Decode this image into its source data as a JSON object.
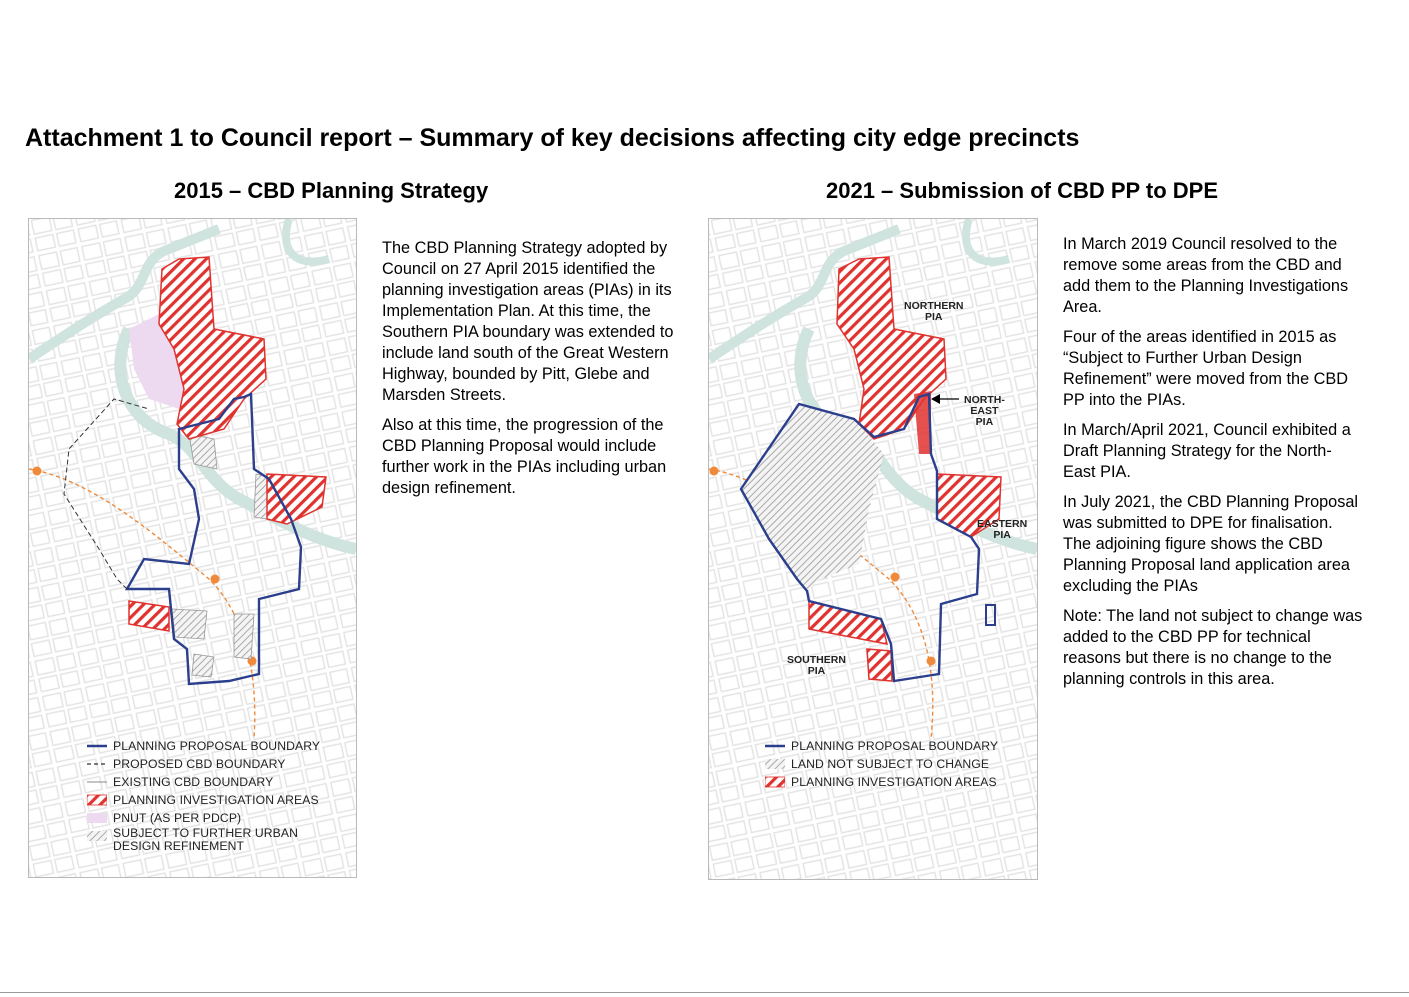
{
  "document": {
    "title": "Attachment 1 to Council report – Summary of key decisions affecting city edge precincts"
  },
  "left_section": {
    "heading": "2015 – CBD Planning Strategy",
    "paragraphs": [
      "The CBD Planning Strategy adopted by Council on 27 April 2015 identified the planning investigation areas (PIAs) in its Implementation Plan. At this time, the Southern PIA boundary was extended to include land south of the Great Western Highway, bounded by Pitt, Glebe and Marsden Streets.",
      "Also at this time, the progression of the CBD Planning Proposal would include further work in the PIAs including urban design refinement."
    ],
    "legend": [
      {
        "label": "PLANNING PROPOSAL BOUNDARY",
        "icon": "solid-navy-line"
      },
      {
        "label": "PROPOSED CBD BOUNDARY",
        "icon": "dashed-black-line"
      },
      {
        "label": "EXISTING CBD BOUNDARY",
        "icon": "thin-grey-line"
      },
      {
        "label": "PLANNING INVESTIGATION AREAS",
        "icon": "red-hatch"
      },
      {
        "label": "PNUT (AS PER PDCP)",
        "icon": "pink-fill"
      },
      {
        "label": "SUBJECT TO FURTHER URBAN DESIGN REFINEMENT",
        "icon": "grey-hatch"
      }
    ]
  },
  "right_section": {
    "heading": "2021 – Submission of CBD PP to DPE",
    "paragraphs": [
      "In March 2019 Council resolved to the remove some areas from the CBD and add them to the Planning Investigations Area.",
      "Four of the areas identified in 2015 as “Subject to Further Urban Design Refinement” were moved from the CBD PP into the PIAs.",
      "In March/April 2021, Council exhibited a Draft Planning Strategy for the North-East PIA.",
      "In July 2021, the CBD Planning Proposal was submitted to DPE for finalisation. The adjoining figure shows the CBD Planning Proposal land application area excluding the PIAs",
      "Note: The land not subject to change was added to the CBD PP for technical reasons but there is no change to the planning controls in this area."
    ],
    "map_labels": {
      "northern": [
        "NORTHERN",
        "PIA"
      ],
      "north_east": [
        "NORTH-",
        "EAST",
        "PIA"
      ],
      "eastern": [
        "EASTERN",
        "PIA"
      ],
      "southern": [
        "SOUTHERN",
        "PIA"
      ]
    },
    "legend": [
      {
        "label": "PLANNING PROPOSAL BOUNDARY",
        "icon": "solid-navy-line"
      },
      {
        "label": "LAND NOT SUBJECT TO CHANGE",
        "icon": "grey-hatch"
      },
      {
        "label": "PLANNING INVESTIGATION AREAS",
        "icon": "red-hatch"
      }
    ]
  },
  "colors": {
    "boundary": "#2b3f8c",
    "pia_red": "#e0332f",
    "river": "#cfe3df",
    "street": "#e6e6e6",
    "pnut": "#eedaf0",
    "rail": "#f08a3a"
  }
}
